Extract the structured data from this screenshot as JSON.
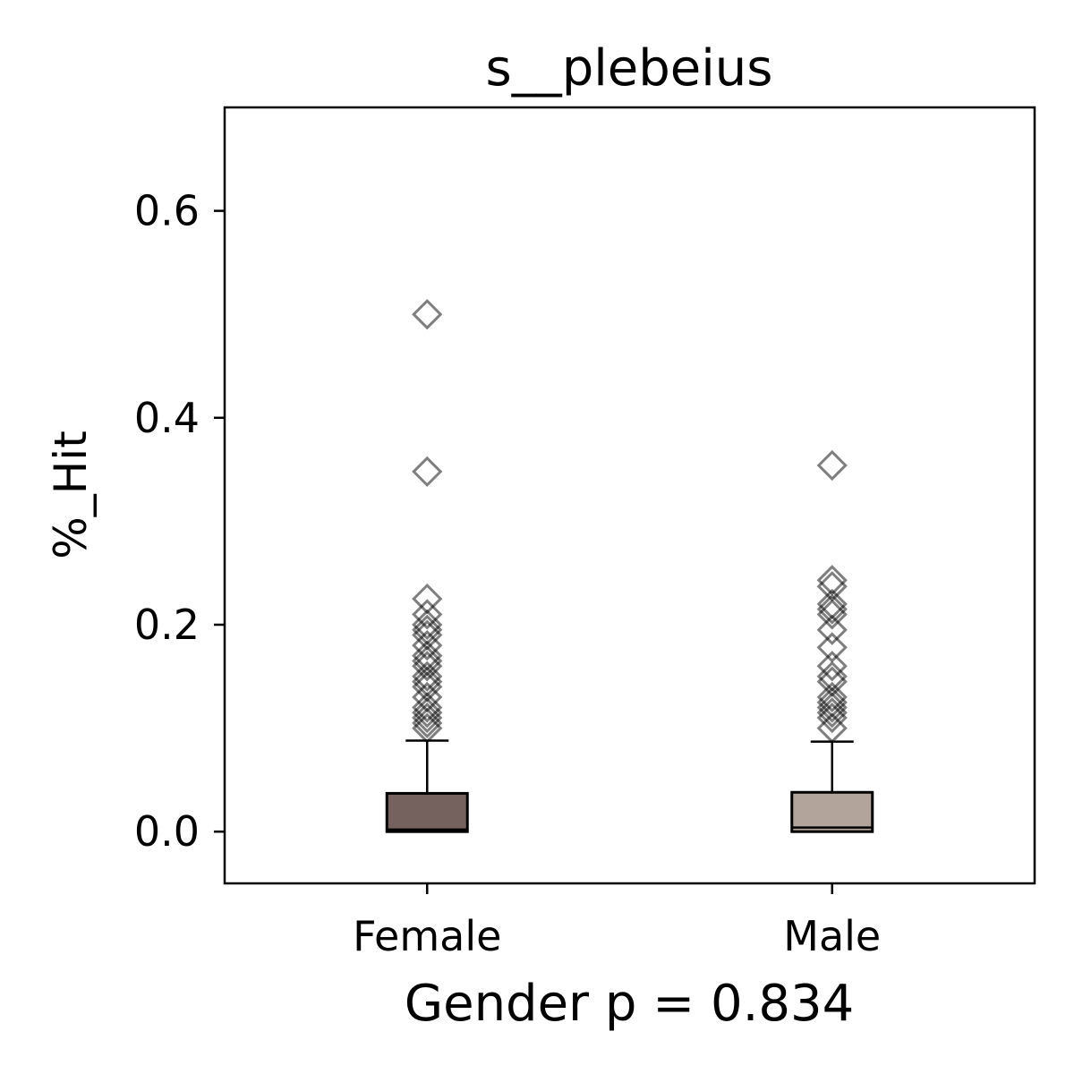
{
  "chart_data": {
    "type": "box",
    "title": "s__plebeius",
    "xlabel": "Gender p = 0.834",
    "ylabel": "%_Hit",
    "ylim": [
      -0.05,
      0.7
    ],
    "yticks": [
      0.0,
      0.2,
      0.4,
      0.6
    ],
    "ytick_labels": [
      "0.0",
      "0.2",
      "0.4",
      "0.6"
    ],
    "grid": false,
    "legend": "none",
    "categories": [
      "Female",
      "Male"
    ],
    "series": [
      {
        "category": "Female",
        "color": "#75625f",
        "whisker_low": 0.0,
        "q1": 0.0,
        "median": 0.002,
        "q3": 0.037,
        "whisker_high": 0.088,
        "outliers": [
          0.5,
          0.348,
          0.225,
          0.21,
          0.2,
          0.195,
          0.19,
          0.18,
          0.17,
          0.165,
          0.16,
          0.15,
          0.145,
          0.14,
          0.13,
          0.12,
          0.115,
          0.11,
          0.105,
          0.1
        ]
      },
      {
        "category": "Male",
        "color": "#b3a49b",
        "whisker_low": 0.0,
        "q1": 0.0,
        "median": 0.004,
        "q3": 0.038,
        "whisker_high": 0.087,
        "outliers": [
          0.354,
          0.243,
          0.237,
          0.22,
          0.215,
          0.21,
          0.195,
          0.178,
          0.16,
          0.15,
          0.145,
          0.13,
          0.125,
          0.12,
          0.115,
          0.11,
          0.1
        ]
      }
    ]
  }
}
